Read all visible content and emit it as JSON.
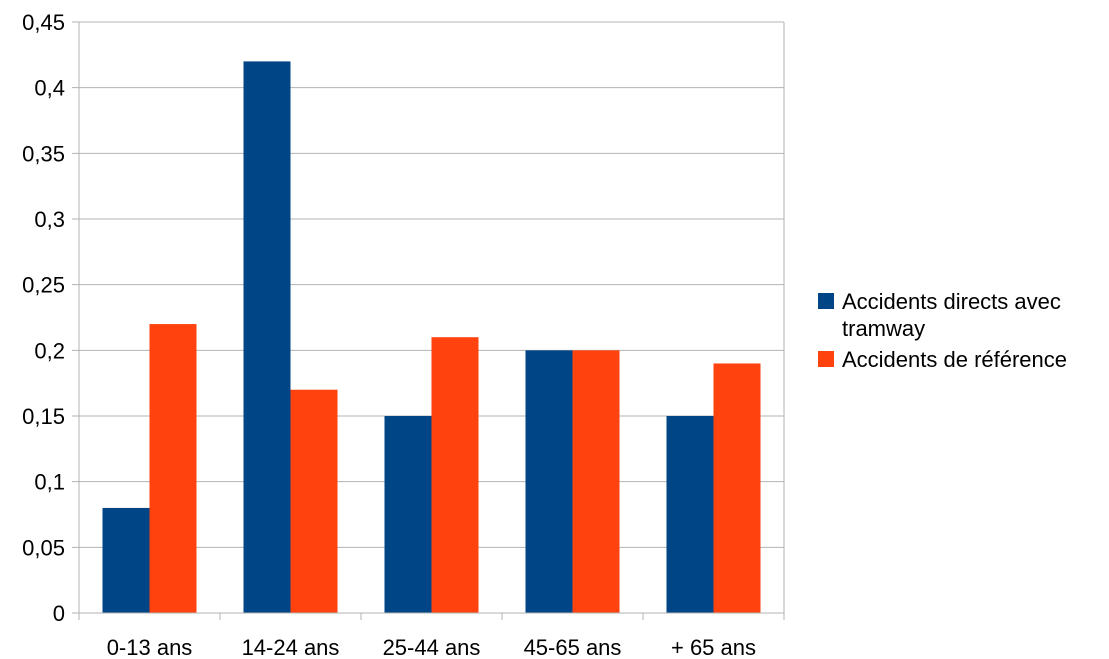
{
  "chart_data": {
    "type": "bar",
    "title": "",
    "xlabel": "",
    "ylabel": "",
    "categories": [
      "0-13 ans",
      "14-24 ans",
      "25-44 ans",
      "45-65 ans",
      "+ 65 ans"
    ],
    "series": [
      {
        "name": "Accidents directs avec tramway",
        "color": "#004586",
        "values": [
          0.08,
          0.42,
          0.15,
          0.2,
          0.15
        ]
      },
      {
        "name": "Accidents de référence",
        "color": "#ff420e",
        "values": [
          0.22,
          0.17,
          0.21,
          0.2,
          0.19
        ]
      }
    ],
    "ylim": [
      0,
      0.45
    ],
    "yticks": [
      "0",
      "0,05",
      "0,1",
      "0,15",
      "0,2",
      "0,25",
      "0,3",
      "0,35",
      "0,4",
      "0,45"
    ],
    "grid": true,
    "legend_position": "right"
  }
}
